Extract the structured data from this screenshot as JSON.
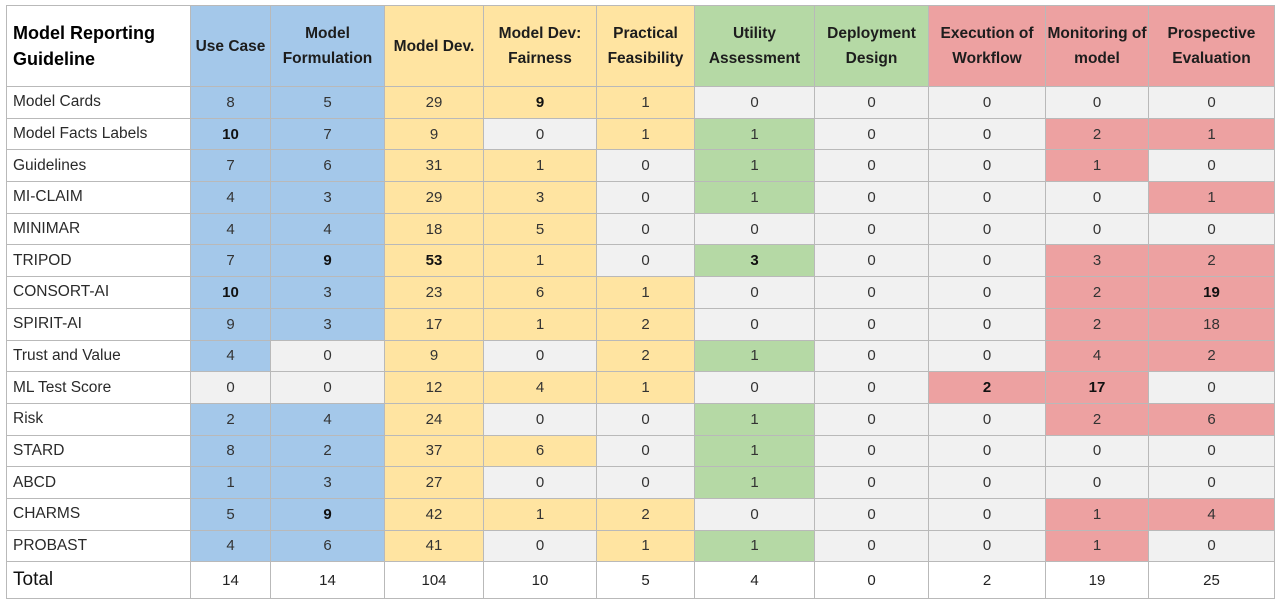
{
  "chart_data": {
    "type": "table",
    "colors": {
      "blue": "#a4c8ea",
      "yellow": "#ffe4a1",
      "green": "#b5d9a5",
      "red": "#eda1a1",
      "empty": "#f1f1f1",
      "total": "#ffffff",
      "header_first": "#ffffff"
    },
    "header": {
      "label": "Model Reporting Guideline",
      "columns": [
        {
          "label": "Use Case",
          "group": "blue"
        },
        {
          "label": "Model Formulation",
          "group": "blue"
        },
        {
          "label": "Model Dev.",
          "group": "yellow"
        },
        {
          "label": "Model Dev: Fairness",
          "group": "yellow"
        },
        {
          "label": "Practical Feasibility",
          "group": "yellow"
        },
        {
          "label": "Utility Assessment",
          "group": "green"
        },
        {
          "label": "Deployment Design",
          "group": "green"
        },
        {
          "label": "Execution of Workflow",
          "group": "red"
        },
        {
          "label": "Monitoring of model",
          "group": "red"
        },
        {
          "label": "Prospective Evaluation",
          "group": "red"
        }
      ]
    },
    "rows": [
      {
        "label": "Model Cards",
        "values": [
          8,
          5,
          29,
          9,
          1,
          0,
          0,
          0,
          0,
          0
        ],
        "bold": [
          3
        ]
      },
      {
        "label": "Model Facts Labels",
        "values": [
          10,
          7,
          9,
          0,
          1,
          1,
          0,
          0,
          2,
          1
        ],
        "bold": [
          0
        ]
      },
      {
        "label": "Guidelines",
        "values": [
          7,
          6,
          31,
          1,
          0,
          1,
          0,
          0,
          1,
          0
        ],
        "bold": []
      },
      {
        "label": "MI-CLAIM",
        "values": [
          4,
          3,
          29,
          3,
          0,
          1,
          0,
          0,
          0,
          1
        ],
        "bold": []
      },
      {
        "label": "MINIMAR",
        "values": [
          4,
          4,
          18,
          5,
          0,
          0,
          0,
          0,
          0,
          0
        ],
        "bold": []
      },
      {
        "label": "TRIPOD",
        "values": [
          7,
          9,
          53,
          1,
          0,
          3,
          0,
          0,
          3,
          2
        ],
        "bold": [
          1,
          2,
          5
        ]
      },
      {
        "label": "CONSORT-AI",
        "values": [
          10,
          3,
          23,
          6,
          1,
          0,
          0,
          0,
          2,
          19
        ],
        "bold": [
          0,
          9
        ]
      },
      {
        "label": "SPIRIT-AI",
        "values": [
          9,
          3,
          17,
          1,
          2,
          0,
          0,
          0,
          2,
          18
        ],
        "bold": []
      },
      {
        "label": "Trust and Value",
        "values": [
          4,
          0,
          9,
          0,
          2,
          1,
          0,
          0,
          4,
          2
        ],
        "bold": []
      },
      {
        "label": "ML Test Score",
        "values": [
          0,
          0,
          12,
          4,
          1,
          0,
          0,
          2,
          17,
          0
        ],
        "bold": [
          7,
          8
        ]
      },
      {
        "label": "Risk",
        "values": [
          2,
          4,
          24,
          0,
          0,
          1,
          0,
          0,
          2,
          6
        ],
        "bold": []
      },
      {
        "label": "STARD",
        "values": [
          8,
          2,
          37,
          6,
          0,
          1,
          0,
          0,
          0,
          0
        ],
        "bold": []
      },
      {
        "label": "ABCD",
        "values": [
          1,
          3,
          27,
          0,
          0,
          1,
          0,
          0,
          0,
          0
        ],
        "bold": []
      },
      {
        "label": "CHARMS",
        "values": [
          5,
          9,
          42,
          1,
          2,
          0,
          0,
          0,
          1,
          4
        ],
        "bold": [
          1
        ]
      },
      {
        "label": "PROBAST",
        "values": [
          4,
          6,
          41,
          0,
          1,
          1,
          0,
          0,
          1,
          0
        ],
        "bold": []
      }
    ],
    "total": {
      "label": "Total",
      "values": [
        14,
        14,
        104,
        10,
        5,
        4,
        0,
        2,
        19,
        25
      ]
    }
  }
}
